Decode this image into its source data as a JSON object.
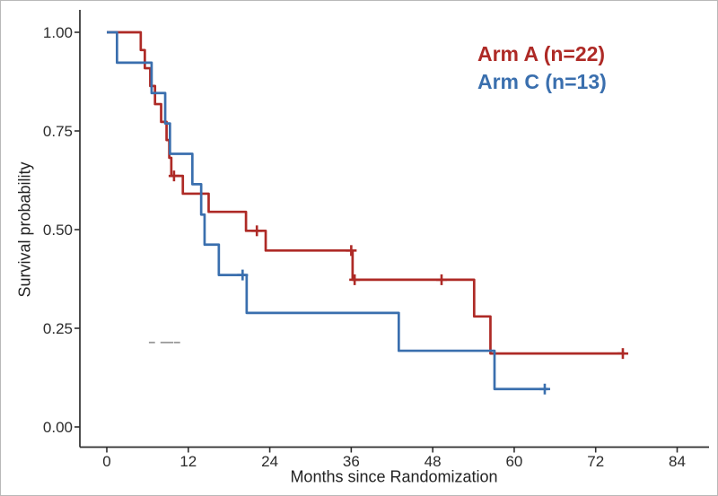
{
  "figure": {
    "xlabel": "Months since Randomization",
    "ylabel": "Survival probability"
  },
  "legend": {
    "position": "top-right-inside",
    "items": [
      {
        "id": "arm-a",
        "label": "Arm A (n=22)",
        "color": "#ae2a26"
      },
      {
        "id": "arm-c",
        "label": "Arm C (n=13)",
        "color": "#3a6fae"
      }
    ]
  },
  "chart_data": {
    "type": "line",
    "subtype": "kaplan-meier-step",
    "title": "",
    "xlabel": "Months since Randomization",
    "ylabel": "Survival probability",
    "xlim": [
      -2,
      88
    ],
    "ylim": [
      0.0,
      1.0
    ],
    "xticks": [
      0,
      12,
      24,
      36,
      48,
      60,
      72,
      84
    ],
    "yticks": [
      {
        "value": 0.0,
        "label": "0.00"
      },
      {
        "value": 0.25,
        "label": "0.25"
      },
      {
        "value": 0.5,
        "label": "0.50"
      },
      {
        "value": 0.75,
        "label": "0.75"
      },
      {
        "value": 1.0,
        "label": "1.00"
      }
    ],
    "grid": false,
    "axis_color": "#2e2e2e",
    "series": [
      {
        "name": "Arm A (n=22)",
        "n": 22,
        "color": "#ae2a26",
        "start": {
          "time": 0,
          "survival": 1.0
        },
        "steps": [
          {
            "time": 5.0,
            "survival": 0.955
          },
          {
            "time": 5.6,
            "survival": 0.909
          },
          {
            "time": 6.4,
            "survival": 0.864
          },
          {
            "time": 7.1,
            "survival": 0.818
          },
          {
            "time": 8.0,
            "survival": 0.773
          },
          {
            "time": 8.8,
            "survival": 0.727
          },
          {
            "time": 9.2,
            "survival": 0.682
          },
          {
            "time": 9.5,
            "survival": 0.636
          },
          {
            "time": 11.2,
            "survival": 0.591
          },
          {
            "time": 15.0,
            "survival": 0.545
          },
          {
            "time": 20.5,
            "survival": 0.497
          },
          {
            "time": 23.4,
            "survival": 0.447
          },
          {
            "time": 36.2,
            "survival": 0.373
          },
          {
            "time": 54.1,
            "survival": 0.28
          },
          {
            "time": 56.5,
            "survival": 0.186
          }
        ],
        "end_time": 76.3,
        "censor_marks": [
          {
            "time": 9.9,
            "survival": 0.636
          },
          {
            "time": 22.1,
            "survival": 0.497
          },
          {
            "time": 36.0,
            "survival": 0.447
          },
          {
            "time": 36.5,
            "survival": 0.373
          },
          {
            "time": 49.3,
            "survival": 0.373
          },
          {
            "time": 76.0,
            "survival": 0.186
          }
        ]
      },
      {
        "name": "Arm C (n=13)",
        "n": 13,
        "color": "#3a6fae",
        "start": {
          "time": 0,
          "survival": 1.0
        },
        "steps": [
          {
            "time": 1.5,
            "survival": 0.923
          },
          {
            "time": 6.6,
            "survival": 0.846
          },
          {
            "time": 8.6,
            "survival": 0.769
          },
          {
            "time": 9.3,
            "survival": 0.692
          },
          {
            "time": 12.6,
            "survival": 0.615
          },
          {
            "time": 13.9,
            "survival": 0.538
          },
          {
            "time": 14.4,
            "survival": 0.462
          },
          {
            "time": 16.5,
            "survival": 0.385
          },
          {
            "time": 20.6,
            "survival": 0.289
          },
          {
            "time": 43.0,
            "survival": 0.193
          },
          {
            "time": 57.1,
            "survival": 0.096
          }
        ],
        "end_time": 65.0,
        "censor_marks": [
          {
            "time": 20.0,
            "survival": 0.385
          },
          {
            "time": 64.5,
            "survival": 0.096
          }
        ]
      }
    ],
    "annotations": {
      "gray_dashes": {
        "color": "#9a9a9a",
        "survival": 0.214,
        "segments": [
          {
            "t_start": 6.2,
            "t_end": 7.1
          },
          {
            "t_start": 7.9,
            "t_end": 9.8
          },
          {
            "t_start": 9.9,
            "t_end": 10.8
          }
        ]
      }
    }
  }
}
